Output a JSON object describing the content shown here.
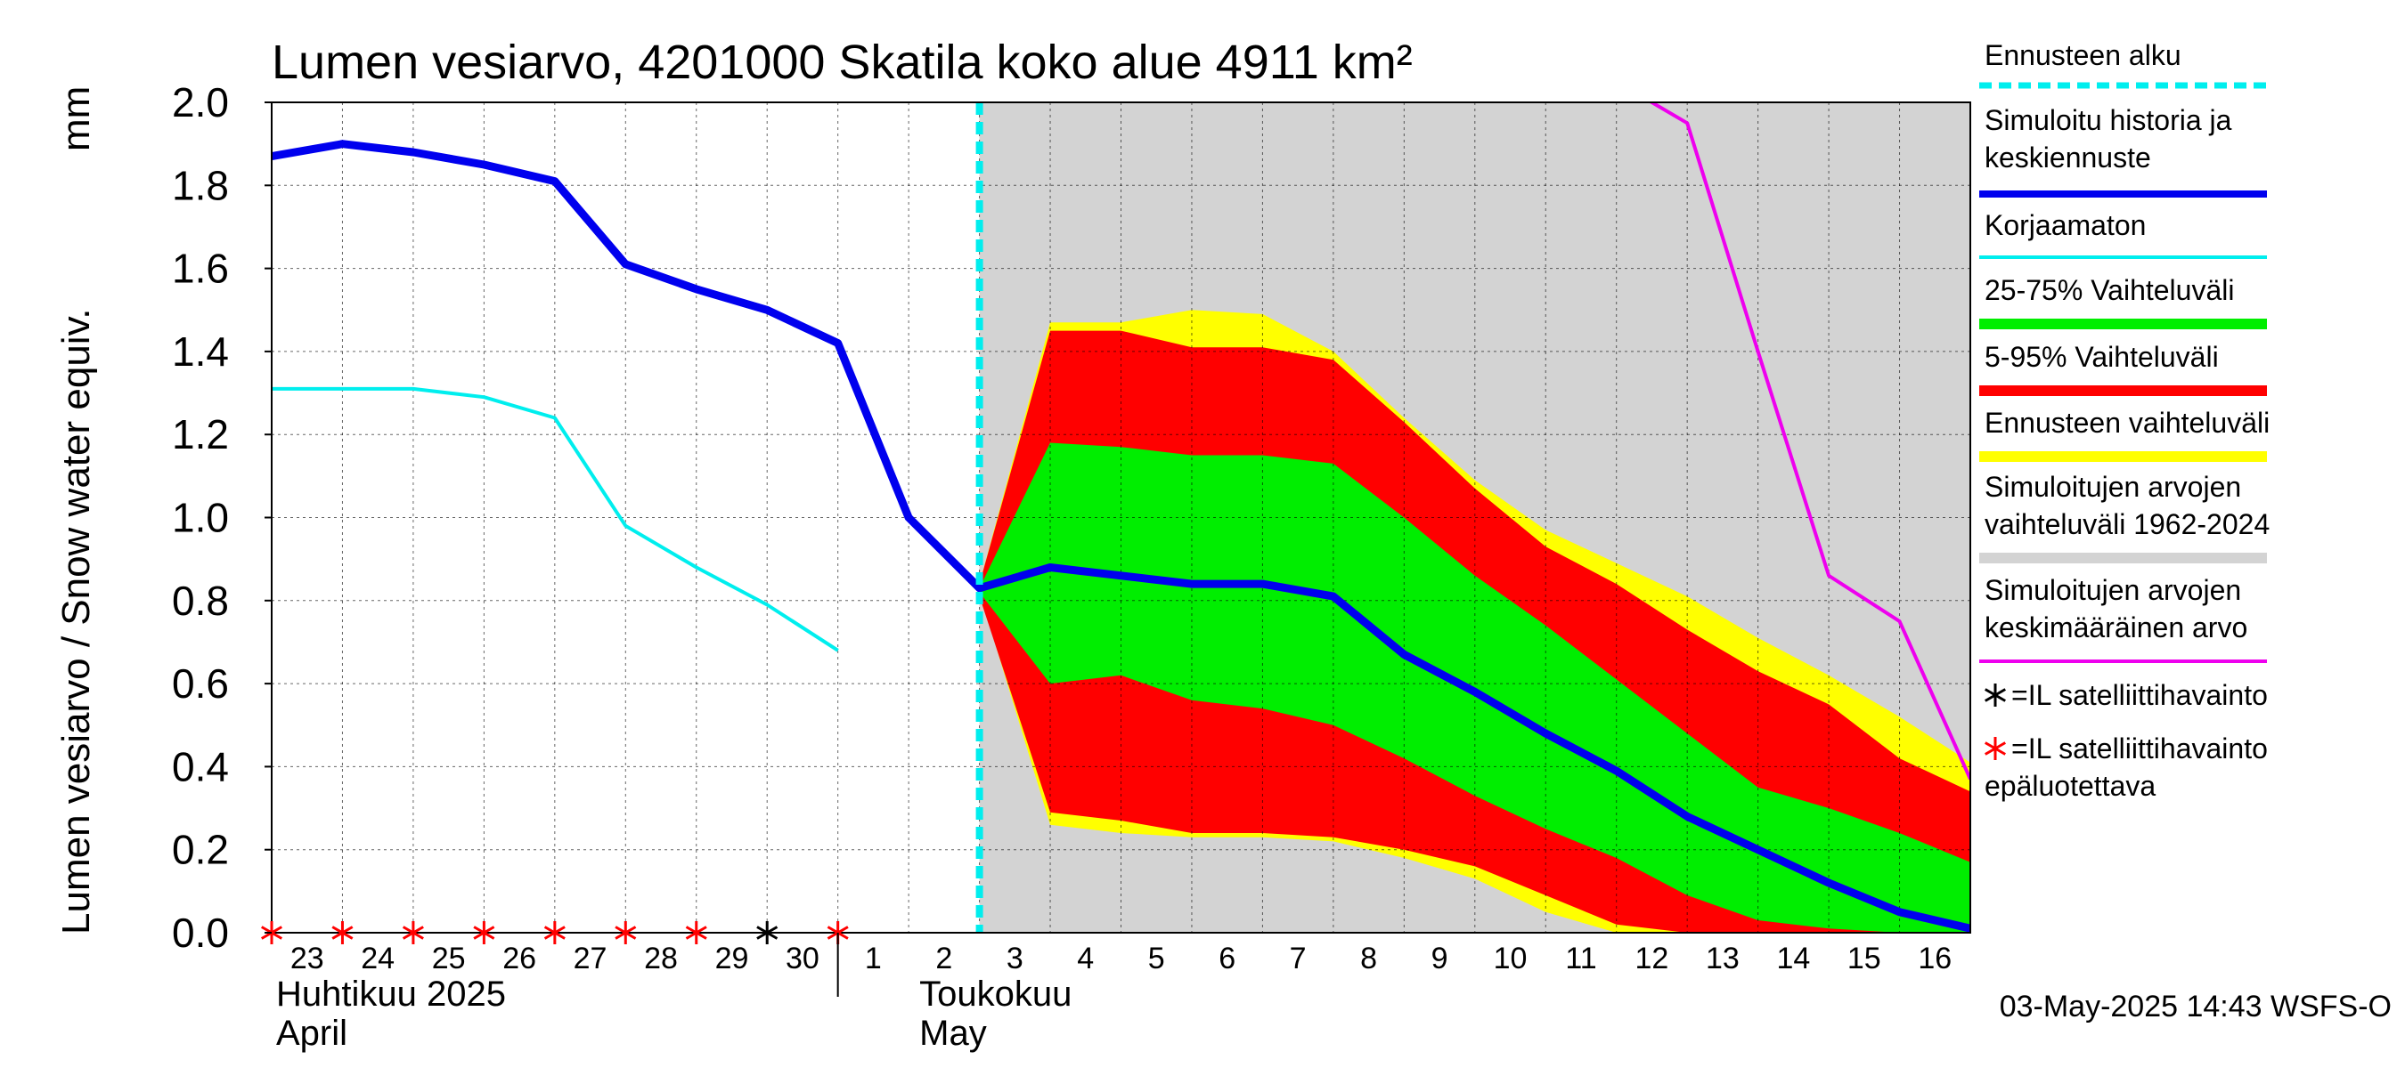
{
  "chart_data": {
    "type": "area",
    "title": "Lumen vesiarvo, 4201000 Skatila koko alue 4911 km²",
    "ylabel": "Lumen vesiarvo / Snow water equiv.",
    "yunit": "mm",
    "ylim": [
      0.0,
      2.0
    ],
    "yticks": [
      "0.0",
      "0.2",
      "0.4",
      "0.6",
      "0.8",
      "1.0",
      "1.2",
      "1.4",
      "1.6",
      "1.8",
      "2.0"
    ],
    "x_start": "2025-04-23",
    "x_end": "2025-05-17",
    "x_tick_labels": [
      "23",
      "24",
      "25",
      "26",
      "27",
      "28",
      "29",
      "30",
      "1",
      "2",
      "3",
      "4",
      "5",
      "6",
      "7",
      "8",
      "9",
      "10",
      "11",
      "12",
      "13",
      "14",
      "15",
      "16"
    ],
    "month_labels": [
      {
        "fi": "Huhtikuu  2025",
        "en": "April"
      },
      {
        "fi": "Toukokuu",
        "en": "May"
      }
    ],
    "grid": true,
    "background_band": {
      "color": "#d3d3d3",
      "name": "Simuloitujen arvojen vaihteluväli 1962-2024"
    },
    "forecast_start": "2025-05-03",
    "series": [
      {
        "name": "Simuloitu historia ja keskiennuste",
        "color": "#0000ee",
        "x": [
          "2025-04-23",
          "2025-04-24",
          "2025-04-25",
          "2025-04-26",
          "2025-04-27",
          "2025-04-28",
          "2025-04-29",
          "2025-04-30",
          "2025-05-01",
          "2025-05-02",
          "2025-05-03",
          "2025-05-04",
          "2025-05-05",
          "2025-05-06",
          "2025-05-07",
          "2025-05-08",
          "2025-05-09",
          "2025-05-10",
          "2025-05-11",
          "2025-05-12",
          "2025-05-13",
          "2025-05-14",
          "2025-05-15",
          "2025-05-16",
          "2025-05-17"
        ],
        "y": [
          1.87,
          1.9,
          1.88,
          1.85,
          1.81,
          1.61,
          1.55,
          1.5,
          1.42,
          1.0,
          0.83,
          0.88,
          0.86,
          0.84,
          0.84,
          0.81,
          0.67,
          0.58,
          0.48,
          0.39,
          0.28,
          0.2,
          0.12,
          0.05,
          0.01
        ]
      },
      {
        "name": "Korjaamaton",
        "color": "#00eeee",
        "x": [
          "2025-04-23",
          "2025-04-24",
          "2025-04-25",
          "2025-04-26",
          "2025-04-27",
          "2025-04-28",
          "2025-04-29",
          "2025-04-30",
          "2025-05-01"
        ],
        "y": [
          1.31,
          1.31,
          1.31,
          1.29,
          1.24,
          0.98,
          0.88,
          0.79,
          0.68
        ]
      },
      {
        "name": "Simuloitujen arvojen keskimääräinen arvo",
        "color": "#ee00ee",
        "x": [
          "2025-05-12",
          "2025-05-13",
          "2025-05-14",
          "2025-05-15",
          "2025-05-16",
          "2025-05-17"
        ],
        "y": [
          2.05,
          1.95,
          1.4,
          0.86,
          0.75,
          0.37
        ]
      }
    ],
    "bands": [
      {
        "name": "Ennusteen vaihteluväli",
        "color": "#ffff00",
        "x": [
          "2025-05-03",
          "2025-05-04",
          "2025-05-05",
          "2025-05-06",
          "2025-05-07",
          "2025-05-08",
          "2025-05-09",
          "2025-05-10",
          "2025-05-11",
          "2025-05-12",
          "2025-05-13",
          "2025-05-14",
          "2025-05-15",
          "2025-05-16",
          "2025-05-17"
        ],
        "upper": [
          0.84,
          1.47,
          1.47,
          1.5,
          1.49,
          1.4,
          1.24,
          1.09,
          0.97,
          0.89,
          0.81,
          0.71,
          0.62,
          0.52,
          0.41
        ],
        "lower": [
          0.82,
          0.26,
          0.24,
          0.23,
          0.23,
          0.22,
          0.18,
          0.13,
          0.05,
          0.0,
          0.0,
          0.0,
          0.0,
          0.0,
          0.0
        ]
      },
      {
        "name": "5-95% Vaihteluväli",
        "color": "#ff0000",
        "x": [
          "2025-05-03",
          "2025-05-04",
          "2025-05-05",
          "2025-05-06",
          "2025-05-07",
          "2025-05-08",
          "2025-05-09",
          "2025-05-10",
          "2025-05-11",
          "2025-05-12",
          "2025-05-13",
          "2025-05-14",
          "2025-05-15",
          "2025-05-16",
          "2025-05-17"
        ],
        "upper": [
          0.84,
          1.45,
          1.45,
          1.41,
          1.41,
          1.38,
          1.23,
          1.07,
          0.93,
          0.84,
          0.73,
          0.63,
          0.55,
          0.42,
          0.34
        ],
        "lower": [
          0.81,
          0.29,
          0.27,
          0.24,
          0.24,
          0.23,
          0.2,
          0.16,
          0.09,
          0.02,
          0.0,
          0.0,
          0.0,
          0.0,
          0.0
        ]
      },
      {
        "name": "25-75% Vaihteluväli",
        "color": "#00ee00",
        "x": [
          "2025-05-03",
          "2025-05-04",
          "2025-05-05",
          "2025-05-06",
          "2025-05-07",
          "2025-05-08",
          "2025-05-09",
          "2025-05-10",
          "2025-05-11",
          "2025-05-12",
          "2025-05-13",
          "2025-05-14",
          "2025-05-15",
          "2025-05-16",
          "2025-05-17"
        ],
        "upper": [
          0.83,
          1.18,
          1.17,
          1.15,
          1.15,
          1.13,
          1.0,
          0.86,
          0.74,
          0.61,
          0.48,
          0.35,
          0.3,
          0.24,
          0.17
        ],
        "lower": [
          0.82,
          0.6,
          0.62,
          0.56,
          0.54,
          0.5,
          0.42,
          0.33,
          0.25,
          0.18,
          0.09,
          0.03,
          0.01,
          0.0,
          0.0
        ]
      }
    ],
    "markers": [
      {
        "date": "2025-04-23",
        "value": 0.0,
        "type": "unreliable"
      },
      {
        "date": "2025-04-24",
        "value": 0.0,
        "type": "unreliable"
      },
      {
        "date": "2025-04-25",
        "value": 0.0,
        "type": "unreliable"
      },
      {
        "date": "2025-04-26",
        "value": 0.0,
        "type": "unreliable"
      },
      {
        "date": "2025-04-27",
        "value": 0.0,
        "type": "unreliable"
      },
      {
        "date": "2025-04-28",
        "value": 0.0,
        "type": "unreliable"
      },
      {
        "date": "2025-04-29",
        "value": 0.0,
        "type": "unreliable"
      },
      {
        "date": "2025-04-30",
        "value": 0.0,
        "type": "reliable"
      },
      {
        "date": "2025-05-01",
        "value": 0.0,
        "type": "unreliable"
      }
    ],
    "legend": {
      "placement": "right",
      "items": [
        {
          "label": "Ennusteen alku",
          "kind": "dashed",
          "color": "#00eeee"
        },
        {
          "label": "Simuloitu historia ja\nkeskiennuste",
          "kind": "line",
          "color": "#0000ee"
        },
        {
          "label": "Korjaamaton",
          "kind": "line",
          "color": "#00eeee"
        },
        {
          "label": "25-75% Vaihteluväli",
          "kind": "thick",
          "color": "#00ee00"
        },
        {
          "label": "5-95% Vaihteluväli",
          "kind": "thick",
          "color": "#ff0000"
        },
        {
          "label": "Ennusteen vaihteluväli",
          "kind": "thick",
          "color": "#ffff00"
        },
        {
          "label": "Simuloitujen arvojen\nvaihteluväli 1962-2024",
          "kind": "thick",
          "color": "#d3d3d3"
        },
        {
          "label": "Simuloitujen arvojen\nkeskimääräinen arvo",
          "kind": "line",
          "color": "#ee00ee"
        },
        {
          "label": "=IL satelliittihavainto",
          "kind": "star",
          "color": "#000000"
        },
        {
          "label": "=IL satelliittihavainto\nepäluotettava",
          "kind": "star",
          "color": "#ff0000"
        }
      ]
    },
    "footer": "03-May-2025 14:43 WSFS-O"
  }
}
